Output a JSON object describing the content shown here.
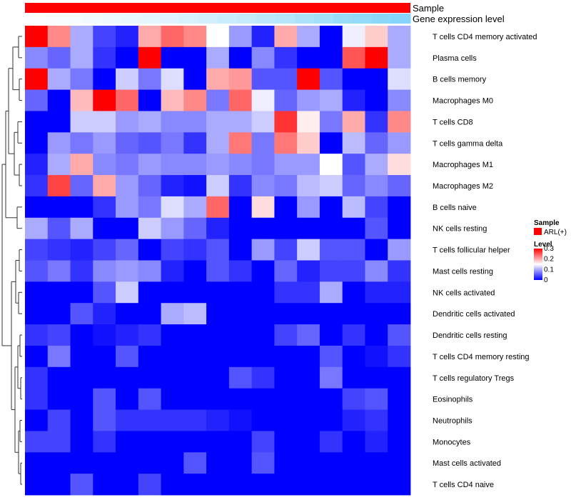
{
  "chart_data": {
    "type": "heatmap",
    "title": "",
    "annotations": {
      "sample_label": "Sample",
      "gene_label": "Gene expression level",
      "sample_color": "#ff0000",
      "gene_values": [
        0.02,
        0.03,
        0.05,
        0.08,
        0.1,
        0.12,
        0.15,
        0.18,
        0.22,
        0.26,
        0.3,
        0.34,
        0.38,
        0.42,
        0.47,
        0.52,
        0.58,
        0.62,
        0.66,
        0.7
      ]
    },
    "rows": [
      "T cells CD4 memory activated",
      "Plasma cells",
      "B cells memory",
      "Macrophages M0",
      "T cells CD8",
      "T cells gamma delta",
      "Macrophages M1",
      "Macrophages M2",
      "B cells naive",
      "NK cells resting",
      "T cells follicular helper",
      "Mast cells resting",
      "NK cells activated",
      "Dendritic cells activated",
      "Dendritic cells resting",
      "T cells CD4 memory resting",
      "T cells regulatory  Tregs",
      "Eosinophils",
      "Neutrophils",
      "Monocytes",
      "Mast cells activated",
      "T cells CD4 naive"
    ],
    "values": [
      [
        0.3,
        0.22,
        0.1,
        0.04,
        0.02,
        0.2,
        0.24,
        0.22,
        0.15,
        0.09,
        0.02,
        0.2,
        0.1,
        0.0,
        0.14,
        0.18,
        0.1
      ],
      [
        0.08,
        0.06,
        0.1,
        0.03,
        0.0,
        0.3,
        0.0,
        0.0,
        0.1,
        0.0,
        0.08,
        0.03,
        0.0,
        0.0,
        0.25,
        0.3,
        0.1
      ],
      [
        0.3,
        0.1,
        0.07,
        0.0,
        0.12,
        0.07,
        0.13,
        0.0,
        0.2,
        0.21,
        0.05,
        0.05,
        0.3,
        0.05,
        0.0,
        0.0,
        0.13
      ],
      [
        0.06,
        0.0,
        0.19,
        0.3,
        0.24,
        0.0,
        0.19,
        0.22,
        0.07,
        0.24,
        0.14,
        0.06,
        0.09,
        0.1,
        0.02,
        0.0,
        0.08
      ],
      [
        0.0,
        0.0,
        0.12,
        0.12,
        0.09,
        0.1,
        0.08,
        0.08,
        0.1,
        0.1,
        0.12,
        0.27,
        0.16,
        0.07,
        0.2,
        0.03,
        0.22
      ],
      [
        0.0,
        0.09,
        0.07,
        0.09,
        0.06,
        0.05,
        0.07,
        0.03,
        0.1,
        0.23,
        0.07,
        0.23,
        0.18,
        0.0,
        0.11,
        0.06,
        0.09
      ],
      [
        0.02,
        0.1,
        0.2,
        0.08,
        0.07,
        0.09,
        0.08,
        0.08,
        0.09,
        0.08,
        0.07,
        0.09,
        0.09,
        0.15,
        0.05,
        0.1,
        0.17
      ],
      [
        0.03,
        0.26,
        0.06,
        0.2,
        0.09,
        0.06,
        0.02,
        0.01,
        0.12,
        0.03,
        0.08,
        0.07,
        0.11,
        0.12,
        0.06,
        0.08,
        0.06
      ],
      [
        0.0,
        0.0,
        0.0,
        0.03,
        0.09,
        0.07,
        0.13,
        0.1,
        0.24,
        0.0,
        0.17,
        0.0,
        0.09,
        0.0,
        0.11,
        0.04,
        0.0
      ],
      [
        0.1,
        0.05,
        0.1,
        0.0,
        0.0,
        0.12,
        0.09,
        0.06,
        0.02,
        0.0,
        0.0,
        0.0,
        0.0,
        0.0,
        0.0,
        0.05,
        0.0
      ],
      [
        0.04,
        0.03,
        0.02,
        0.04,
        0.06,
        0.0,
        0.04,
        0.03,
        0.05,
        0.0,
        0.09,
        0.04,
        0.12,
        0.05,
        0.05,
        0.0,
        0.09
      ],
      [
        0.05,
        0.07,
        0.03,
        0.08,
        0.09,
        0.08,
        0.02,
        0.0,
        0.05,
        0.03,
        0.0,
        0.06,
        0.02,
        0.04,
        0.04,
        0.08,
        0.03
      ],
      [
        0.0,
        0.0,
        0.0,
        0.05,
        0.12,
        0.0,
        0.0,
        0.0,
        0.0,
        0.0,
        0.0,
        0.03,
        0.03,
        0.1,
        0.0,
        0.02,
        0.02
      ],
      [
        0.0,
        0.0,
        0.05,
        0.02,
        0.0,
        0.0,
        0.1,
        0.11,
        0.0,
        0.0,
        0.0,
        0.0,
        0.0,
        0.0,
        0.0,
        0.0,
        0.0
      ],
      [
        0.03,
        0.04,
        0.0,
        0.01,
        0.02,
        0.03,
        0.0,
        0.0,
        0.0,
        0.0,
        0.0,
        0.04,
        0.06,
        0.0,
        0.03,
        0.0,
        0.05
      ],
      [
        0.0,
        0.07,
        0.0,
        0.0,
        0.05,
        0.0,
        0.0,
        0.0,
        0.0,
        0.0,
        0.0,
        0.0,
        0.0,
        0.05,
        0.0,
        0.01,
        0.03
      ],
      [
        0.03,
        0.0,
        0.0,
        0.0,
        0.0,
        0.0,
        0.0,
        0.0,
        0.0,
        0.05,
        0.03,
        0.0,
        0.0,
        0.07,
        0.0,
        0.0,
        0.0
      ],
      [
        0.03,
        0.0,
        0.0,
        0.05,
        0.0,
        0.05,
        0.0,
        0.0,
        0.0,
        0.0,
        0.0,
        0.0,
        0.0,
        0.0,
        0.04,
        0.05,
        0.0
      ],
      [
        0.0,
        0.04,
        0.0,
        0.05,
        0.03,
        0.03,
        0.03,
        0.03,
        0.02,
        0.01,
        0.0,
        0.0,
        0.0,
        0.0,
        0.02,
        0.03,
        0.0
      ],
      [
        0.04,
        0.04,
        0.0,
        0.03,
        0.0,
        0.0,
        0.0,
        0.0,
        0.0,
        0.0,
        0.04,
        0.0,
        0.0,
        0.03,
        0.0,
        0.02,
        0.0
      ],
      [
        0.0,
        0.0,
        0.0,
        0.0,
        0.0,
        0.0,
        0.0,
        0.05,
        0.0,
        0.0,
        0.05,
        0.0,
        0.0,
        0.0,
        0.0,
        0.0,
        0.0
      ],
      [
        0.0,
        0.0,
        0.05,
        0.0,
        0.0,
        0.04,
        0.0,
        0.0,
        0.0,
        0.0,
        0.0,
        0.0,
        0.0,
        0.0,
        0.0,
        0.0,
        0.0
      ]
    ],
    "legend": {
      "sample_title": "Sample",
      "sample_entry": "ARL(+)",
      "level_title": "Level",
      "ticks": [
        "0.3",
        "0.2",
        "0.1",
        "0"
      ],
      "tick_values": [
        0.3,
        0.2,
        0.1,
        0.0
      ],
      "range": [
        0,
        0.3
      ]
    },
    "colors": {
      "low": "#0000ff",
      "mid": "#ffffff",
      "high": "#ff0000"
    }
  }
}
